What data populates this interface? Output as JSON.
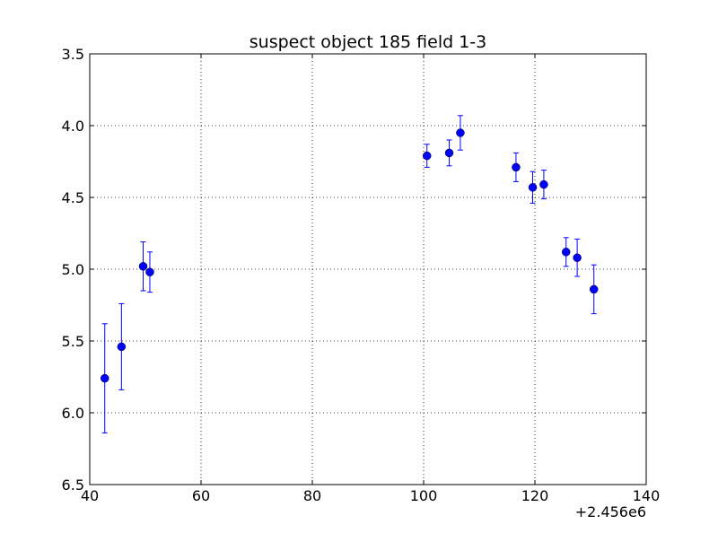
{
  "chart_data": {
    "type": "scatter",
    "title": "suspect object 185 field 1-3",
    "xlabel": "",
    "ylabel": "",
    "x_offset_label": "+2.456e6",
    "xlim": [
      40,
      140
    ],
    "ylim": [
      6.5,
      3.5
    ],
    "y_inverted": true,
    "grid": true,
    "grid_style": "dotted",
    "x_ticks": [
      "40",
      "60",
      "80",
      "100",
      "120",
      "140"
    ],
    "y_ticks": [
      "3.5",
      "4.0",
      "4.5",
      "5.0",
      "5.5",
      "6.0",
      "6.5"
    ],
    "marker_color": "#0000ff",
    "series": [
      {
        "points": [
          {
            "x": 42.7,
            "y": 5.76,
            "err": 0.38
          },
          {
            "x": 45.7,
            "y": 5.54,
            "err": 0.3
          },
          {
            "x": 49.6,
            "y": 4.98,
            "err": 0.17
          },
          {
            "x": 50.8,
            "y": 5.02,
            "err": 0.14
          },
          {
            "x": 100.6,
            "y": 4.21,
            "err": 0.08
          },
          {
            "x": 104.6,
            "y": 4.19,
            "err": 0.09
          },
          {
            "x": 106.6,
            "y": 4.05,
            "err": 0.12
          },
          {
            "x": 116.6,
            "y": 4.29,
            "err": 0.1
          },
          {
            "x": 119.6,
            "y": 4.43,
            "err": 0.11
          },
          {
            "x": 121.6,
            "y": 4.41,
            "err": 0.1
          },
          {
            "x": 125.6,
            "y": 4.88,
            "err": 0.1
          },
          {
            "x": 127.6,
            "y": 4.92,
            "err": 0.13
          },
          {
            "x": 130.6,
            "y": 5.14,
            "err": 0.17
          }
        ]
      }
    ]
  }
}
